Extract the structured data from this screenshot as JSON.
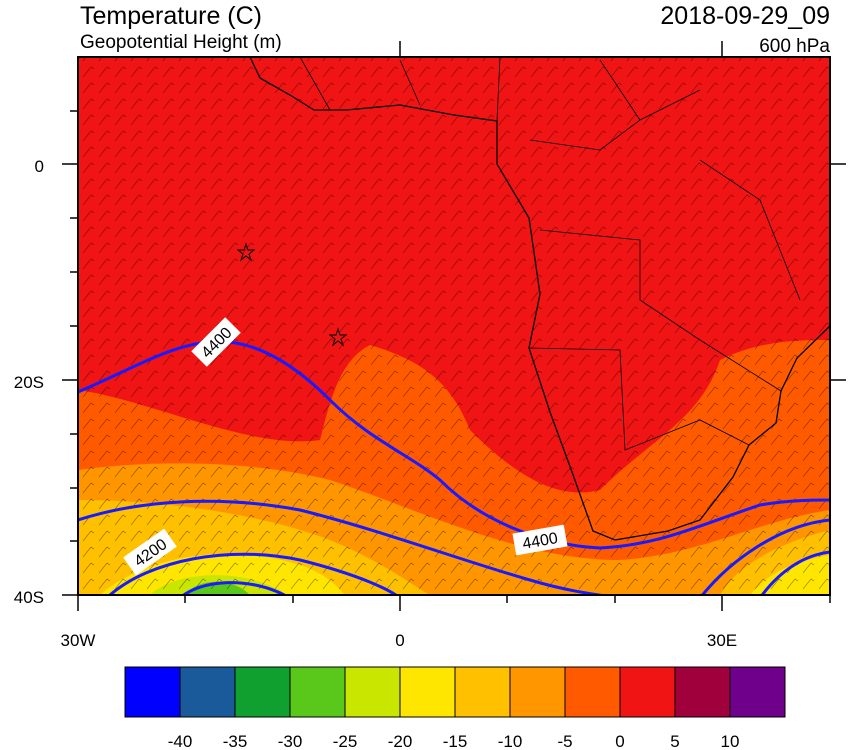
{
  "header": {
    "title": "Temperature (C)",
    "subtitle": "Geopotential Height (m)",
    "valid_time": "2018-09-29_09",
    "level": "600 hPa"
  },
  "axes": {
    "y_labels": [
      "0",
      "20S",
      "40S"
    ],
    "x_labels": [
      "30W",
      "0",
      "30E"
    ]
  },
  "contour_labels": [
    "4400",
    "4400",
    "4200"
  ],
  "colorbar": {
    "labels": [
      -40,
      -35,
      -30,
      -25,
      -20,
      -15,
      -10,
      -5,
      0,
      5,
      10
    ],
    "colors": [
      "#0000ff",
      "#1a5a9a",
      "#10a030",
      "#5ac81a",
      "#c8e600",
      "#ffe600",
      "#ffc000",
      "#ff9600",
      "#ff5a00",
      "#f01414",
      "#a0003c",
      "#6e008c"
    ]
  }
}
